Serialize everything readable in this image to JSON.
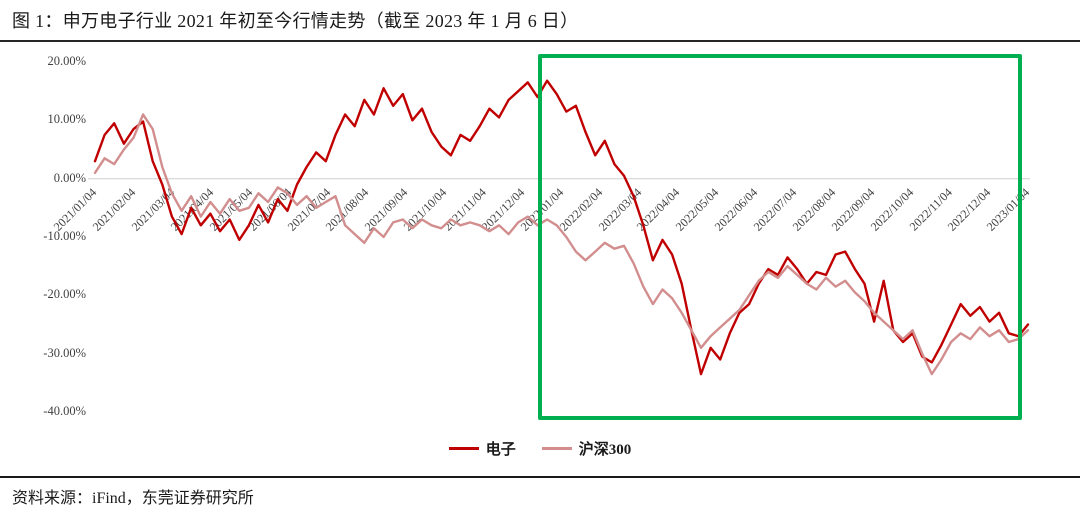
{
  "title": "图 1：申万电子行业 2021 年初至今行情走势（截至 2023 年 1 月 6 日）",
  "source": "资料来源：iFind，东莞证券研究所",
  "colors": {
    "electronics": "#C00000",
    "csi300": "#D28E8E",
    "highlight_box": "#00B050",
    "axis_text": "#3F3F3F",
    "rule": "#1A1A1A"
  },
  "chart_data": {
    "type": "line",
    "title": "申万电子行业2021年初至今行情走势",
    "xlabel": "",
    "ylabel": "",
    "ylim": [
      -40,
      20
    ],
    "grid": false,
    "legend_position": "bottom",
    "y_ticks": [
      "20.00%",
      "10.00%",
      "0.00%",
      "-10.00%",
      "-20.00%",
      "-30.00%",
      "-40.00%"
    ],
    "y_tick_values": [
      20,
      10,
      0,
      -10,
      -20,
      -30,
      -40
    ],
    "x_ticks": [
      "2021/01/04",
      "2021/02/04",
      "2021/03/04",
      "2021/04/04",
      "2021/05/04",
      "2021/06/04",
      "2021/07/04",
      "2021/08/04",
      "2021/09/04",
      "2021/10/04",
      "2021/11/04",
      "2021/12/04",
      "2022/01/04",
      "2022/02/04",
      "2022/03/04",
      "2022/04/04",
      "2022/05/04",
      "2022/06/04",
      "2022/07/04",
      "2022/08/04",
      "2022/09/04",
      "2022/10/04",
      "2022/11/04",
      "2022/12/04",
      "2023/01/04"
    ],
    "legend": [
      {
        "name": "电子",
        "color": "#C00000"
      },
      {
        "name": "沪深300",
        "color": "#D28E8E"
      }
    ],
    "highlight_region": {
      "start_label": "2022/01/04",
      "end_label": "2023/01/04",
      "color": "#00B050"
    },
    "series": [
      {
        "name": "电子",
        "color": "#C00000",
        "unit": "%",
        "values": [
          3,
          7.5,
          9.5,
          6,
          8.5,
          9.8,
          3,
          -1,
          -6.5,
          -9.5,
          -5,
          -8,
          -6,
          -9,
          -7,
          -10.5,
          -8,
          -4.5,
          -7.5,
          -3.5,
          -5.5,
          -1,
          2,
          4.5,
          3,
          7.5,
          11,
          9,
          13.5,
          11,
          15.5,
          12.5,
          14.5,
          10,
          12,
          8,
          5.5,
          4,
          7.5,
          6.5,
          9,
          12,
          10.5,
          13.5,
          15,
          16.5,
          14,
          16.8,
          14.5,
          11.5,
          12.5,
          8,
          4,
          6.5,
          2.5,
          0.5,
          -3,
          -8,
          -14,
          -10.5,
          -13,
          -18,
          -26,
          -33.5,
          -29,
          -31,
          -26.5,
          -23,
          -21.5,
          -18,
          -15.5,
          -16.5,
          -13.5,
          -15.5,
          -18,
          -16,
          -16.5,
          -13,
          -12.5,
          -15.5,
          -18,
          -24.5,
          -17.5,
          -26,
          -28,
          -26.5,
          -30.5,
          -31.5,
          -28.5,
          -25,
          -21.5,
          -23.5,
          -22,
          -24.5,
          -23,
          -26.5,
          -27,
          -25
        ]
      },
      {
        "name": "沪深300",
        "color": "#D28E8E",
        "unit": "%",
        "values": [
          1,
          3.5,
          2.5,
          5,
          7,
          11,
          8.5,
          2,
          -2.5,
          -5.5,
          -3,
          -6.5,
          -4,
          -6,
          -3.5,
          -5.5,
          -5,
          -2.5,
          -4,
          -1.5,
          -2.5,
          -4.5,
          -3,
          -5,
          -4,
          -3,
          -8,
          -9.5,
          -11,
          -8.5,
          -10,
          -7.5,
          -7,
          -8.5,
          -7,
          -8,
          -8.5,
          -7,
          -8,
          -7.5,
          -8,
          -9,
          -8,
          -9.5,
          -7.5,
          -6.5,
          -8,
          -7,
          -8,
          -10,
          -12.5,
          -14,
          -12.5,
          -11,
          -12,
          -11.5,
          -14.5,
          -18.5,
          -21.5,
          -19,
          -20.5,
          -23,
          -26,
          -29,
          -27,
          -25.5,
          -24,
          -22.5,
          -20,
          -17.5,
          -16,
          -17,
          -15,
          -16.5,
          -18,
          -19,
          -17,
          -18.5,
          -17.5,
          -19.5,
          -21,
          -23,
          -24.5,
          -26,
          -27.5,
          -26,
          -30,
          -33.5,
          -31,
          -28,
          -26.5,
          -27.5,
          -25.5,
          -27,
          -26,
          -28,
          -27.5,
          -26
        ]
      }
    ]
  }
}
